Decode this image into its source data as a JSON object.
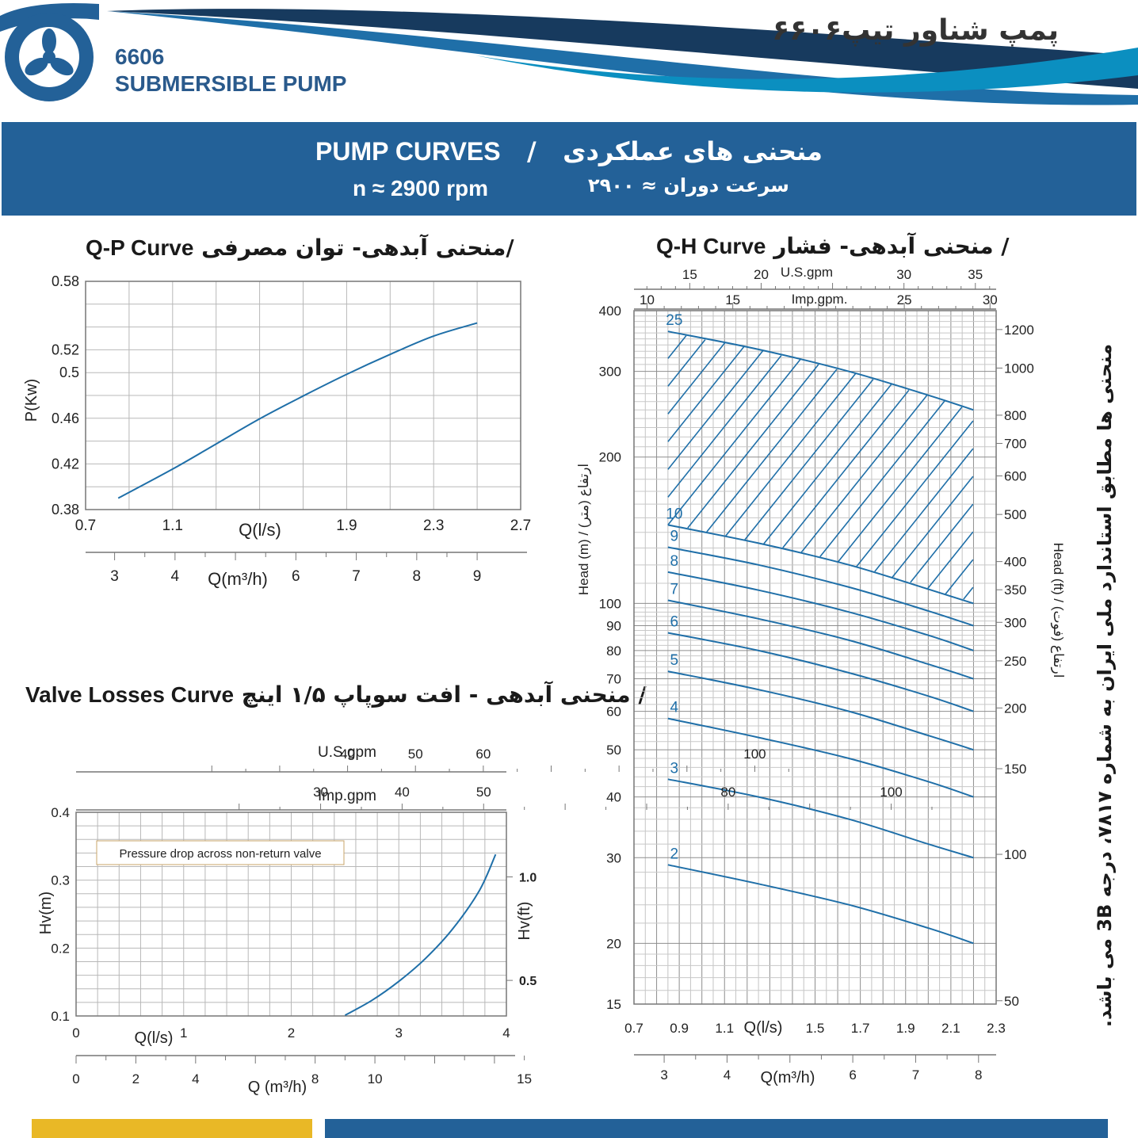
{
  "header": {
    "model_number": "6606",
    "product_name": "SUBMERSIBLE PUMP",
    "title_fa": "پمپ شناور تیپ۶۶۰۶"
  },
  "banner": {
    "title_en": "PUMP CURVES",
    "separator": "/",
    "title_fa": "منحنی های عملکردی",
    "speed_en": "n ≈ 2900 rpm",
    "speed_fa": "سرعت دوران ≈ ۲۹۰۰"
  },
  "side_note": "منحنی ها مطابق استاندارد ملی ایران به شماره ۷۸۱۷، درجه 3B می باشد.",
  "colors": {
    "brand_blue": "#236198",
    "curve_blue": "#1f6fa8",
    "accent_yellow": "#e9b826",
    "grid": "#9a9a9a"
  },
  "qp": {
    "title_fa": "منحنی آبدهی- توان مصرفی/",
    "title_en": "Q-P Curve",
    "ylabel": "P(Kw)",
    "xlabel_ls": "Q(l/s)",
    "xlabel_m3h": "Q(m³/h)"
  },
  "qh": {
    "title_fa": "منحنی آبدهی- فشار /",
    "title_en": "Q-H Curve",
    "ylabel_left": "Head (m)  /  ارتفاع (متر)",
    "ylabel_right": "Head (ft)  /  ارتفاع (فوت)",
    "xlabel_ls": "Q(l/s)",
    "xlabel_m3h": "Q(m³/h)",
    "usgpm_label": "U.S.gpm",
    "impgpm_label": "Imp.gpm."
  },
  "vl": {
    "title_fa": "منحنی آبدهی - افت سوپاپ ۱/۵ اینچ /",
    "title_en": "Valve Losses Curve",
    "annotation": "Pressure drop across non-return valve",
    "ylabel_left": "Hv(m)",
    "ylabel_right": "Hv(ft)",
    "xlabel_ls": "Q(l/s)",
    "xlabel_m3h": "Q (m³/h)",
    "usgpm_label": "U.S.gpm",
    "impgpm_label": "Imp.gpm"
  },
  "chart_data": [
    {
      "id": "qp",
      "type": "line",
      "title": "Q-P Curve",
      "xlabel": "Q(l/s)",
      "ylabel": "P(Kw)",
      "xlim": [
        0.7,
        2.7
      ],
      "ylim": [
        0.38,
        0.58
      ],
      "xticks": [
        0.7,
        1.1,
        1.9,
        2.3,
        2.7
      ],
      "yticks": [
        0.38,
        0.42,
        0.46,
        0.5,
        0.52,
        0.58
      ],
      "secondary_xaxis": {
        "label": "Q(m³/h)",
        "ticks": [
          3,
          4,
          6,
          7,
          8,
          9
        ]
      },
      "grid": true,
      "series": [
        {
          "x": [
            0.85,
            1.1,
            1.3,
            1.5,
            1.7,
            1.9,
            2.1,
            2.3,
            2.5
          ],
          "y": [
            0.39,
            0.4155,
            0.4375,
            0.4595,
            0.4795,
            0.4985,
            0.516,
            0.532,
            0.5435
          ]
        }
      ]
    },
    {
      "id": "qh",
      "type": "line",
      "title": "Q-H Curve",
      "xlabel": "Q(l/s)",
      "ylabel": "Head (m)",
      "xlim": [
        0.7,
        2.3
      ],
      "ylim": [
        15,
        400
      ],
      "yscale": "log",
      "xticks": [
        0.7,
        0.9,
        1.1,
        1.5,
        1.7,
        1.9,
        2.1,
        2.3
      ],
      "yticks": [
        15,
        20,
        30,
        40,
        50,
        60,
        70,
        80,
        90,
        100,
        200,
        300,
        400
      ],
      "yticks_ft": [
        50,
        100,
        150,
        200,
        250,
        300,
        350,
        400,
        500,
        600,
        700,
        800,
        1000,
        1200
      ],
      "xticks_m3h": [
        3,
        4,
        6,
        7,
        8
      ],
      "xticks_usgpm": [
        15,
        20,
        30,
        35
      ],
      "xticks_impgpm": [
        10,
        15,
        25,
        30
      ],
      "grid": true,
      "stages_range": [
        10,
        25
      ],
      "series": [
        {
          "name": "2",
          "x": [
            0.85,
            1.25,
            1.65,
            2.0,
            2.2
          ],
          "y": [
            29,
            26.5,
            24,
            21.5,
            20
          ]
        },
        {
          "name": "3",
          "x": [
            0.85,
            1.25,
            1.65,
            2.0,
            2.2
          ],
          "y": [
            43.5,
            40,
            36,
            32,
            30
          ]
        },
        {
          "name": "4",
          "x": [
            0.85,
            1.25,
            1.65,
            2.0,
            2.2
          ],
          "y": [
            58,
            53,
            48,
            43,
            40
          ]
        },
        {
          "name": "5",
          "x": [
            0.85,
            1.25,
            1.65,
            2.0,
            2.2
          ],
          "y": [
            72.5,
            66.5,
            60,
            53.5,
            50
          ]
        },
        {
          "name": "6",
          "x": [
            0.85,
            1.25,
            1.65,
            2.0,
            2.2
          ],
          "y": [
            87,
            80,
            72,
            64.5,
            60
          ]
        },
        {
          "name": "7",
          "x": [
            0.85,
            1.25,
            1.65,
            2.0,
            2.2
          ],
          "y": [
            101.5,
            93,
            84,
            75,
            70
          ]
        },
        {
          "name": "8",
          "x": [
            0.85,
            1.25,
            1.65,
            2.0,
            2.2
          ],
          "y": [
            116,
            106.5,
            96,
            86,
            80
          ]
        },
        {
          "name": "9",
          "x": [
            0.85,
            1.25,
            1.65,
            2.0,
            2.2
          ],
          "y": [
            130.5,
            120,
            108,
            96.5,
            90
          ]
        },
        {
          "name": "10",
          "x": [
            0.85,
            1.25,
            1.65,
            2.0,
            2.2
          ],
          "y": [
            145,
            133,
            120,
            107,
            100
          ]
        },
        {
          "name": "25",
          "x": [
            0.85,
            1.25,
            1.65,
            2.0,
            2.2
          ],
          "y": [
            362.5,
            333,
            300,
            268,
            250
          ]
        }
      ]
    },
    {
      "id": "valve",
      "type": "line",
      "title": "Valve Losses Curve",
      "xlabel": "Q(l/s)",
      "ylabel": "Hv(m)",
      "xlim": [
        0,
        4
      ],
      "ylim": [
        0.1,
        0.4
      ],
      "xticks": [
        0,
        1,
        2,
        3,
        4
      ],
      "yticks": [
        0.1,
        0.2,
        0.3,
        0.4
      ],
      "yticks_ft": [
        0.5,
        1.0
      ],
      "xticks_m3h": [
        0,
        2,
        4,
        8,
        10,
        15
      ],
      "xticks_usgpm": [
        40,
        50,
        60,
        100
      ],
      "xticks_impgpm": [
        30,
        40,
        50,
        80,
        100
      ],
      "grid": true,
      "series": [
        {
          "x": [
            2.5,
            2.75,
            3.0,
            3.25,
            3.5,
            3.75,
            3.9
          ],
          "y": [
            0.101,
            0.123,
            0.151,
            0.185,
            0.228,
            0.285,
            0.338
          ]
        }
      ]
    }
  ]
}
